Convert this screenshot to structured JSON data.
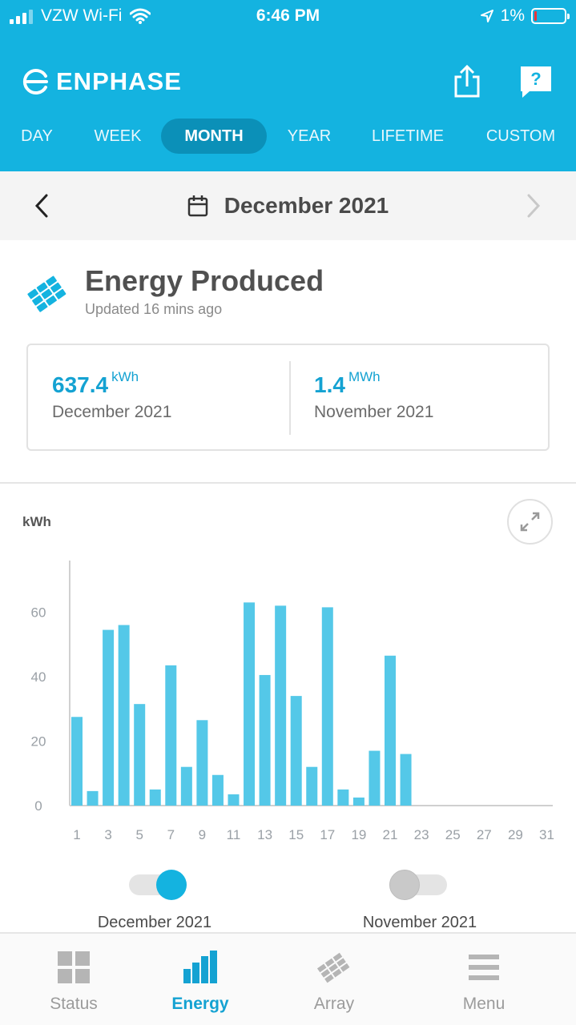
{
  "status_bar": {
    "carrier": "VZW Wi-Fi",
    "time": "6:46 PM",
    "battery": "1%"
  },
  "header": {
    "logo_text": "ENPHASE",
    "share_icon": "share-icon",
    "help_icon": "help-icon",
    "help_glyph": "?"
  },
  "tabs": [
    {
      "label": "DAY"
    },
    {
      "label": "WEEK"
    },
    {
      "label": "MONTH",
      "active": true
    },
    {
      "label": "YEAR"
    },
    {
      "label": "LIFETIME"
    },
    {
      "label": "CUSTOM"
    }
  ],
  "date_nav": {
    "label": "December 2021"
  },
  "energy": {
    "title": "Energy Produced",
    "updated": "Updated 16 mins ago",
    "current": {
      "value": "637.4",
      "unit": "kWh",
      "label": "December 2021"
    },
    "previous": {
      "value": "1.4",
      "unit": "MWh",
      "label": "November 2021"
    }
  },
  "chart_data": {
    "type": "bar",
    "ylabel": "kWh",
    "ylim": [
      0,
      76
    ],
    "y_ticks": [
      "0",
      "20",
      "40",
      "60"
    ],
    "x_ticks": [
      "1",
      "3",
      "5",
      "7",
      "9",
      "11",
      "13",
      "15",
      "17",
      "19",
      "21",
      "23",
      "25",
      "27",
      "29",
      "31"
    ],
    "categories": [
      1,
      2,
      3,
      4,
      5,
      6,
      7,
      8,
      9,
      10,
      11,
      12,
      13,
      14,
      15,
      16,
      17,
      18,
      19,
      20,
      21,
      22,
      23,
      24,
      25,
      26,
      27,
      28,
      29,
      30,
      31
    ],
    "series": [
      {
        "name": "December 2021",
        "values": [
          27.5,
          4.5,
          54.5,
          56,
          31.5,
          5,
          43.5,
          12,
          26.5,
          9.5,
          3.5,
          63,
          40.5,
          62,
          34,
          12,
          61.5,
          5,
          2.5,
          17,
          46.5,
          16,
          0,
          0,
          0,
          0,
          0,
          0,
          0,
          0,
          0
        ]
      }
    ],
    "bar_color": "#54c8e8",
    "grid": false
  },
  "legend": [
    {
      "label": "December 2021",
      "on": true
    },
    {
      "label": "November 2021",
      "on": false
    }
  ],
  "bottom_nav": [
    {
      "label": "Status",
      "icon": "grid-icon"
    },
    {
      "label": "Energy",
      "icon": "bar-chart-icon",
      "active": true
    },
    {
      "label": "Array",
      "icon": "solar-panel-icon"
    },
    {
      "label": "Menu",
      "icon": "hamburger-menu-icon"
    }
  ],
  "colors": {
    "brand": "#14b3e0",
    "accent": "#14a2d2",
    "active_tab": "#0b90b8"
  }
}
